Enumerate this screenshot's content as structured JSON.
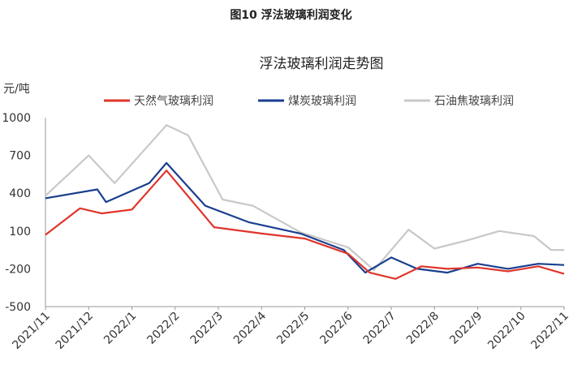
{
  "figure_caption": "图10 浮法玻璃利润变化",
  "chart_data": {
    "type": "line",
    "title": "浮法玻璃利润走势图",
    "unit": "元/吨",
    "ylim": [
      -500,
      1000
    ],
    "yticks": [
      "1000",
      "700",
      "400",
      "100",
      "-200",
      "-500"
    ],
    "grid": false,
    "legend_position": "top",
    "categories": [
      "2021/11",
      "2021/12",
      "2022/1",
      "2022/2",
      "2022/3",
      "2022/4",
      "2022/5",
      "2022/6",
      "2022/7",
      "2022/8",
      "2022/9",
      "2022/10",
      "2022/11"
    ],
    "series": [
      {
        "name": "天然气玻璃利润",
        "color": "#e0352b",
        "values": [
          70,
          280,
          240,
          270,
          580,
          130,
          80,
          40,
          -80,
          -230,
          -280,
          -180,
          -200,
          -190,
          -220,
          -180,
          -240
        ],
        "x": [
          0,
          0.8,
          1.3,
          2.0,
          2.8,
          3.9,
          5.0,
          6.0,
          7.0,
          7.5,
          8.1,
          8.7,
          9.3,
          10.0,
          10.7,
          11.4,
          12.0
        ]
      },
      {
        "name": "煤炭玻璃利润",
        "color": "#1a3f8f",
        "values": [
          360,
          430,
          330,
          480,
          640,
          300,
          170,
          80,
          -50,
          -230,
          -110,
          -200,
          -230,
          -160,
          -200,
          -160,
          -170
        ],
        "x": [
          0,
          1.2,
          1.4,
          2.4,
          2.8,
          3.7,
          4.7,
          5.9,
          6.9,
          7.4,
          8.0,
          8.6,
          9.3,
          10.0,
          10.7,
          11.4,
          12.0
        ]
      },
      {
        "name": "石油焦玻璃利润",
        "color": "#c8c8c8",
        "values": [
          380,
          700,
          480,
          940,
          860,
          350,
          300,
          90,
          -30,
          -210,
          110,
          -40,
          30,
          100,
          60,
          -50,
          -50
        ],
        "x": [
          0,
          1.0,
          1.6,
          2.8,
          3.3,
          4.1,
          4.8,
          5.9,
          7.0,
          7.6,
          8.4,
          9.0,
          9.8,
          10.5,
          11.3,
          11.7,
          12.0
        ]
      }
    ]
  }
}
